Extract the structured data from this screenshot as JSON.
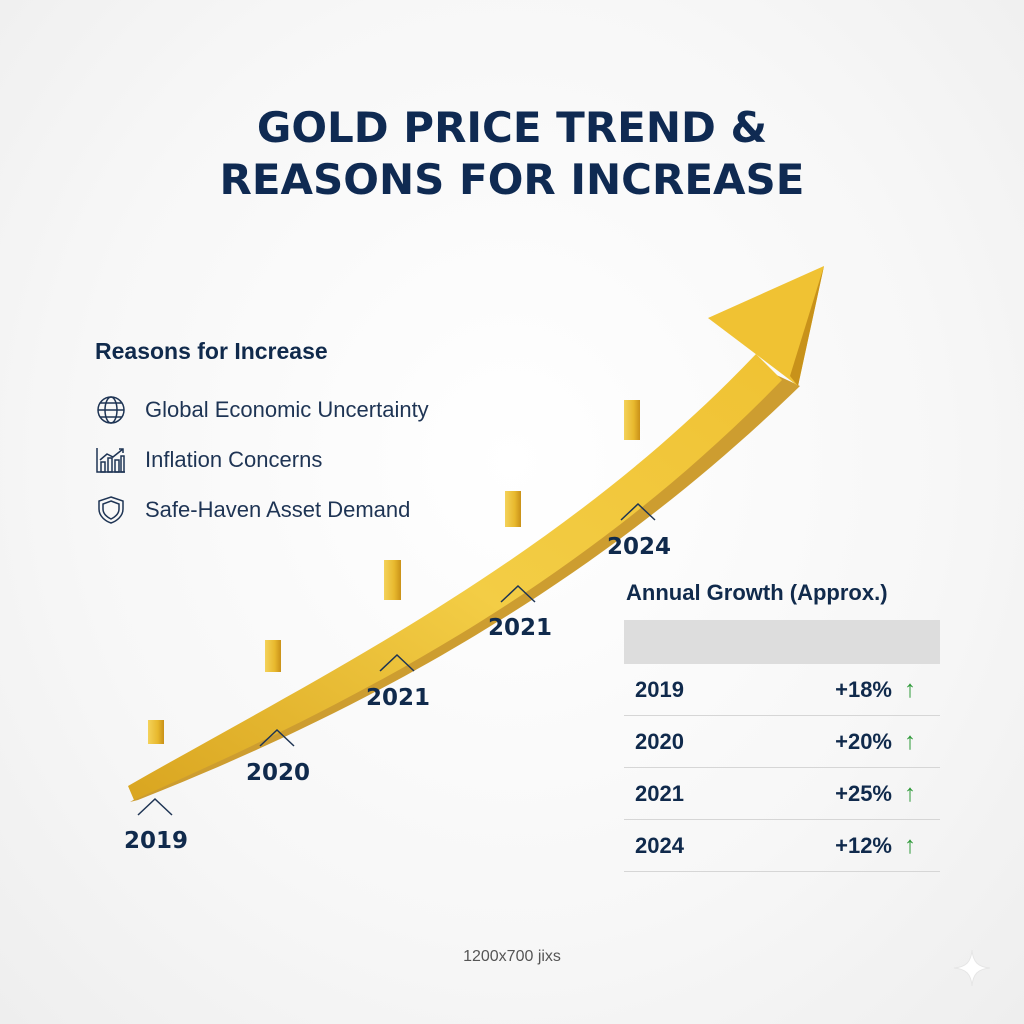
{
  "title_line1": "GOLD PRICE TREND &",
  "title_line2": "REASONS FOR INCREASE",
  "reasons": {
    "heading": "Reasons for Increase",
    "items": [
      {
        "label": "Global Economic Uncertainty",
        "icon": "globe-icon"
      },
      {
        "label": "Inflation Concerns",
        "icon": "chart-icon"
      },
      {
        "label": "Safe-Haven Asset Demand",
        "icon": "shield-icon"
      }
    ]
  },
  "trend_years": [
    "2019",
    "2020",
    "2021",
    "2021",
    "2024"
  ],
  "growth": {
    "heading": "Annual Growth (Approx.)",
    "rows": [
      {
        "year": "2019",
        "value": "+18%"
      },
      {
        "year": "2020",
        "value": "+20%"
      },
      {
        "year": "2021",
        "value": "+25%"
      },
      {
        "year": "2024",
        "value": "+12%"
      }
    ]
  },
  "footer": "1200x700 jixs",
  "colors": {
    "navy": "#0f2a52",
    "gold": "#e8b92e",
    "green": "#2f9a3a"
  }
}
